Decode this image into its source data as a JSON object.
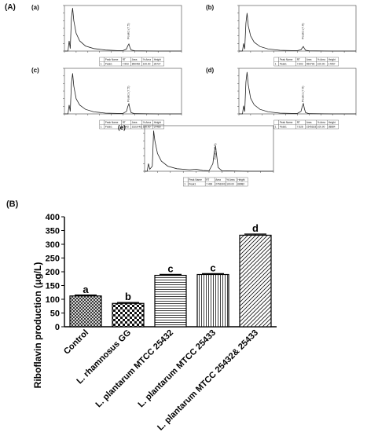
{
  "panel_a_label": "(A)",
  "panel_b_label": "(B)",
  "chart_data": [
    {
      "type": "line",
      "panel": "(a)",
      "peak_annotation": "Peak1 (7.5)",
      "series": [
        {
          "x": [
            2.0,
            2.3,
            2.4,
            2.5,
            2.6,
            2.7,
            2.8,
            3.0,
            3.3,
            3.8,
            4.5,
            5.5,
            6.5,
            7.0,
            7.3,
            7.4,
            7.5,
            7.6,
            7.7,
            8.0,
            10.0,
            12.0
          ],
          "y": [
            0,
            0,
            40,
            10,
            130,
            170,
            120,
            70,
            40,
            20,
            10,
            4,
            2,
            2,
            8,
            20,
            28,
            14,
            4,
            1,
            0,
            0
          ]
        }
      ],
      "table": {
        "headers": [
          "Peak Name",
          "RT",
          "Area",
          "% Area",
          "Height"
        ],
        "rows": [
          [
            "Peak1",
            "7.503",
            "890452",
            "100.00",
            "26727"
          ]
        ]
      }
    },
    {
      "type": "line",
      "panel": "(b)",
      "peak_annotation": "Peak1 (7.6)",
      "series": [
        {
          "x": [
            2.0,
            2.3,
            2.4,
            2.5,
            2.6,
            2.7,
            2.8,
            3.0,
            3.3,
            3.8,
            4.5,
            5.5,
            6.5,
            7.0,
            7.3,
            7.4,
            7.5,
            7.6,
            7.7,
            8.0,
            10.0,
            12.0
          ],
          "y": [
            0,
            0,
            30,
            8,
            110,
            150,
            100,
            60,
            35,
            18,
            8,
            3,
            2,
            2,
            5,
            12,
            18,
            10,
            3,
            1,
            0,
            0
          ]
        }
      ],
      "table": {
        "headers": [
          "Peak Name",
          "RT",
          "Area",
          "% Area",
          "Height"
        ],
        "rows": [
          [
            "Peak1",
            "7.602",
            "554793",
            "100.00",
            "17657"
          ]
        ]
      }
    },
    {
      "type": "line",
      "panel": "(c)",
      "peak_annotation": "Peak1 (7.5)",
      "series": [
        {
          "x": [
            2.0,
            2.3,
            2.4,
            2.5,
            2.6,
            2.7,
            2.8,
            3.0,
            3.3,
            3.8,
            4.5,
            5.5,
            6.5,
            7.0,
            7.3,
            7.4,
            7.5,
            7.6,
            7.7,
            8.0,
            10.0,
            12.0
          ],
          "y": [
            0,
            0,
            35,
            10,
            120,
            160,
            110,
            60,
            35,
            18,
            8,
            3,
            2,
            2,
            10,
            28,
            40,
            20,
            5,
            1,
            0,
            0
          ]
        }
      ],
      "table": {
        "headers": [
          "Peak Name",
          "RT",
          "Area",
          "% Area",
          "Height"
        ],
        "rows": [
          [
            "Peak1",
            "7.543",
            "1523745",
            "100.00",
            "37480"
          ]
        ]
      }
    },
    {
      "type": "line",
      "panel": "(d)",
      "peak_annotation": "Peak1 (7.6)",
      "series": [
        {
          "x": [
            2.0,
            2.3,
            2.4,
            2.5,
            2.6,
            2.7,
            2.8,
            3.0,
            3.3,
            3.8,
            4.5,
            5.5,
            6.5,
            7.0,
            7.3,
            7.4,
            7.5,
            7.6,
            7.7,
            8.0,
            10.0,
            12.0
          ],
          "y": [
            0,
            0,
            32,
            9,
            125,
            165,
            115,
            62,
            36,
            18,
            8,
            3,
            2,
            2,
            10,
            28,
            41,
            20,
            5,
            1,
            0,
            0
          ]
        }
      ],
      "table": {
        "headers": [
          "Peak Name",
          "RT",
          "Area",
          "% Area",
          "Height"
        ],
        "rows": [
          [
            "Peak1",
            "7.628",
            "1545183",
            "100.00",
            "38884"
          ]
        ]
      }
    },
    {
      "type": "line",
      "panel": "(e)",
      "peak_annotation": "Peak1 (7.5)",
      "series": [
        {
          "x": [
            2.0,
            2.2,
            2.3,
            2.4,
            2.6,
            2.7,
            2.8,
            3.0,
            3.3,
            3.8,
            4.5,
            5.5,
            6.0,
            6.5,
            7.0,
            7.3,
            7.4,
            7.5,
            7.6,
            7.7,
            8.0,
            10.0,
            12.0
          ],
          "y": [
            0,
            0,
            30,
            8,
            20,
            160,
            120,
            70,
            40,
            20,
            10,
            6,
            8,
            3,
            2,
            30,
            75,
            100,
            60,
            15,
            2,
            0,
            0
          ]
        }
      ],
      "table": {
        "headers": [
          "Peak Name",
          "RT",
          "Area",
          "% Area",
          "Height"
        ],
        "rows": [
          [
            "Peak1",
            "7.499",
            "2763300",
            "100.00",
            "68982"
          ]
        ]
      }
    },
    {
      "type": "bar",
      "categories": [
        "Control",
        "L. rhamnosus GG",
        "L. plantarum MTCC 25432",
        "L. plantarum MTCC 25433",
        "L. plantarum MTCC 25432& 25433"
      ],
      "values": [
        112,
        85,
        187,
        190,
        333
      ],
      "errors": [
        3,
        3,
        3,
        3,
        4
      ],
      "letters": [
        "a",
        "b",
        "c",
        "c",
        "d"
      ],
      "patterns": [
        "crosshatch",
        "checker",
        "horizontal",
        "vertical",
        "diagonal"
      ],
      "ylabel": "Riboflavin production (μg/L)",
      "ylim": [
        0,
        400
      ],
      "yticks": [
        0,
        50,
        100,
        150,
        200,
        250,
        300,
        350,
        400
      ]
    }
  ]
}
